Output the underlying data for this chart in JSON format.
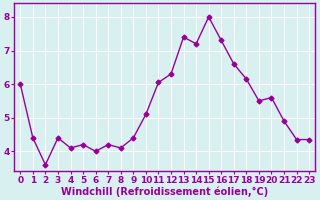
{
  "x": [
    0,
    1,
    2,
    3,
    4,
    5,
    6,
    7,
    8,
    9,
    10,
    11,
    12,
    13,
    14,
    15,
    16,
    17,
    18,
    19,
    20,
    21,
    22,
    23
  ],
  "y": [
    6.0,
    4.4,
    3.6,
    4.4,
    4.1,
    4.2,
    4.0,
    4.2,
    4.1,
    4.4,
    5.1,
    6.05,
    6.3,
    7.4,
    7.2,
    8.0,
    7.3,
    6.6,
    6.15,
    5.5,
    5.6,
    4.9,
    4.35,
    4.35
  ],
  "line_color": "#990099",
  "marker": "D",
  "marker_size": 2.5,
  "line_width": 1.0,
  "bg_color": "#d8f0f0",
  "grid_color": "#ffffff",
  "xlabel": "Windchill (Refroidissement éolien,°C)",
  "xlabel_fontsize": 7.0,
  "ylabel_ticks": [
    4,
    5,
    6,
    7,
    8
  ],
  "xtick_labels": [
    "0",
    "1",
    "2",
    "3",
    "4",
    "5",
    "6",
    "7",
    "8",
    "9",
    "10",
    "11",
    "12",
    "13",
    "14",
    "15",
    "16",
    "17",
    "18",
    "19",
    "20",
    "21",
    "22",
    "23"
  ],
  "xlim": [
    -0.5,
    23.5
  ],
  "ylim": [
    3.4,
    8.4
  ],
  "tick_fontsize": 6.5,
  "spine_color": "#990099",
  "label_color": "#990099"
}
